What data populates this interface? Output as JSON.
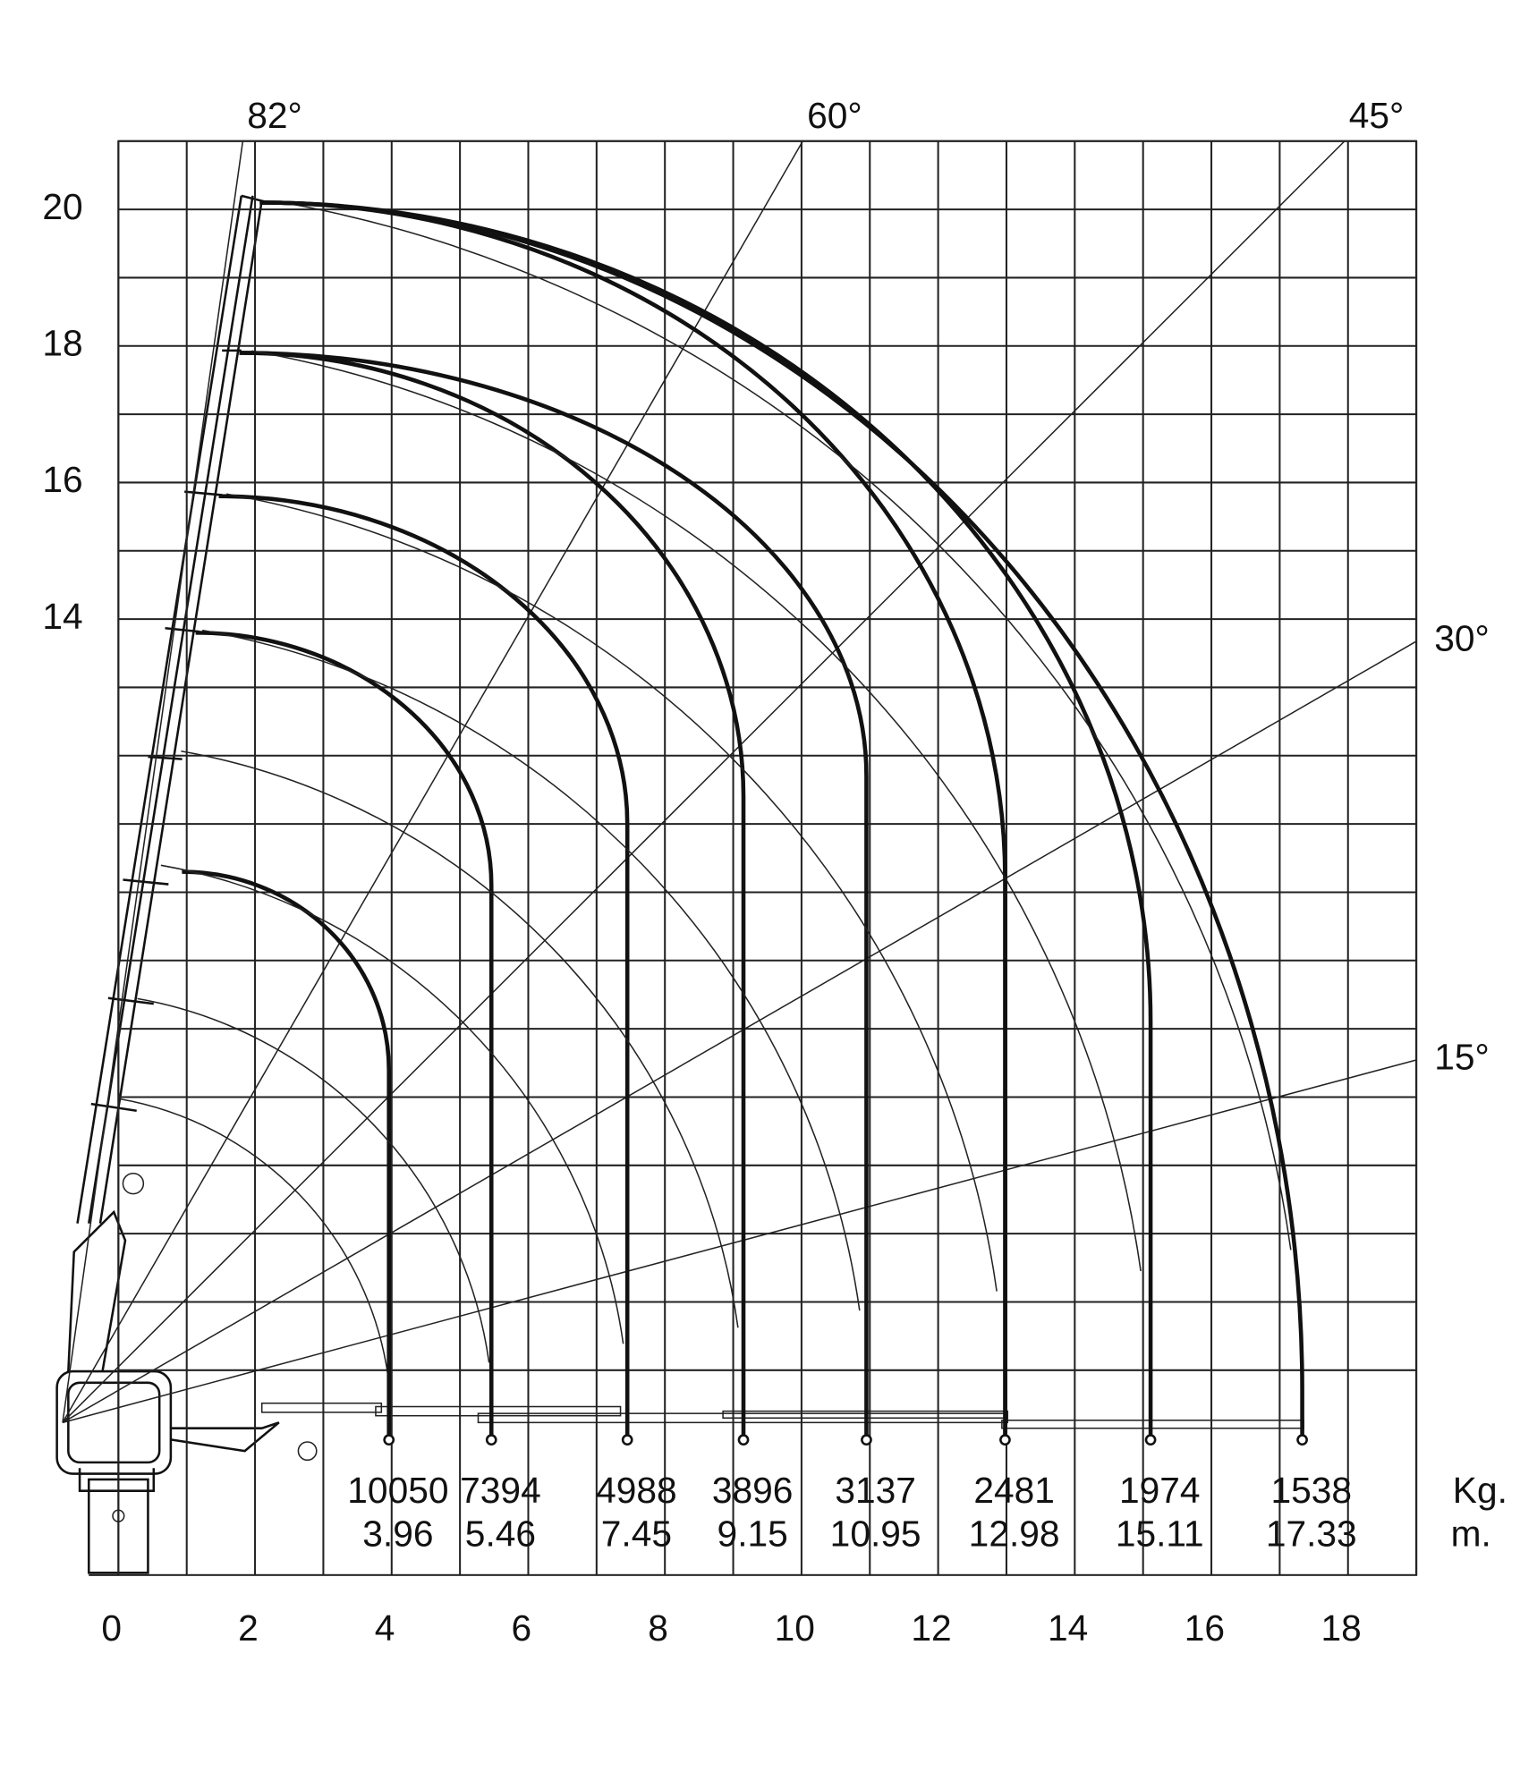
{
  "chart_data": {
    "type": "crane-load",
    "xlim": [
      0,
      19
    ],
    "ylim": [
      0,
      21
    ],
    "xticks": [
      0,
      2,
      4,
      6,
      8,
      10,
      12,
      14,
      16,
      18
    ],
    "yticks": [
      14,
      16,
      18,
      20
    ],
    "angles": [
      {
        "value": 82,
        "label": "82°"
      },
      {
        "value": 60,
        "label": "60°"
      },
      {
        "value": 45,
        "label": "45°"
      },
      {
        "value": 30,
        "label": "30°"
      },
      {
        "value": 15,
        "label": "15°"
      }
    ],
    "loads": [
      10050,
      7394,
      4988,
      3896,
      3137,
      2481,
      1974,
      1538
    ],
    "radii": [
      3.96,
      5.46,
      7.45,
      9.15,
      10.95,
      12.98,
      15.11,
      17.33
    ],
    "load_unit": "Kg.",
    "radius_unit": "m."
  }
}
